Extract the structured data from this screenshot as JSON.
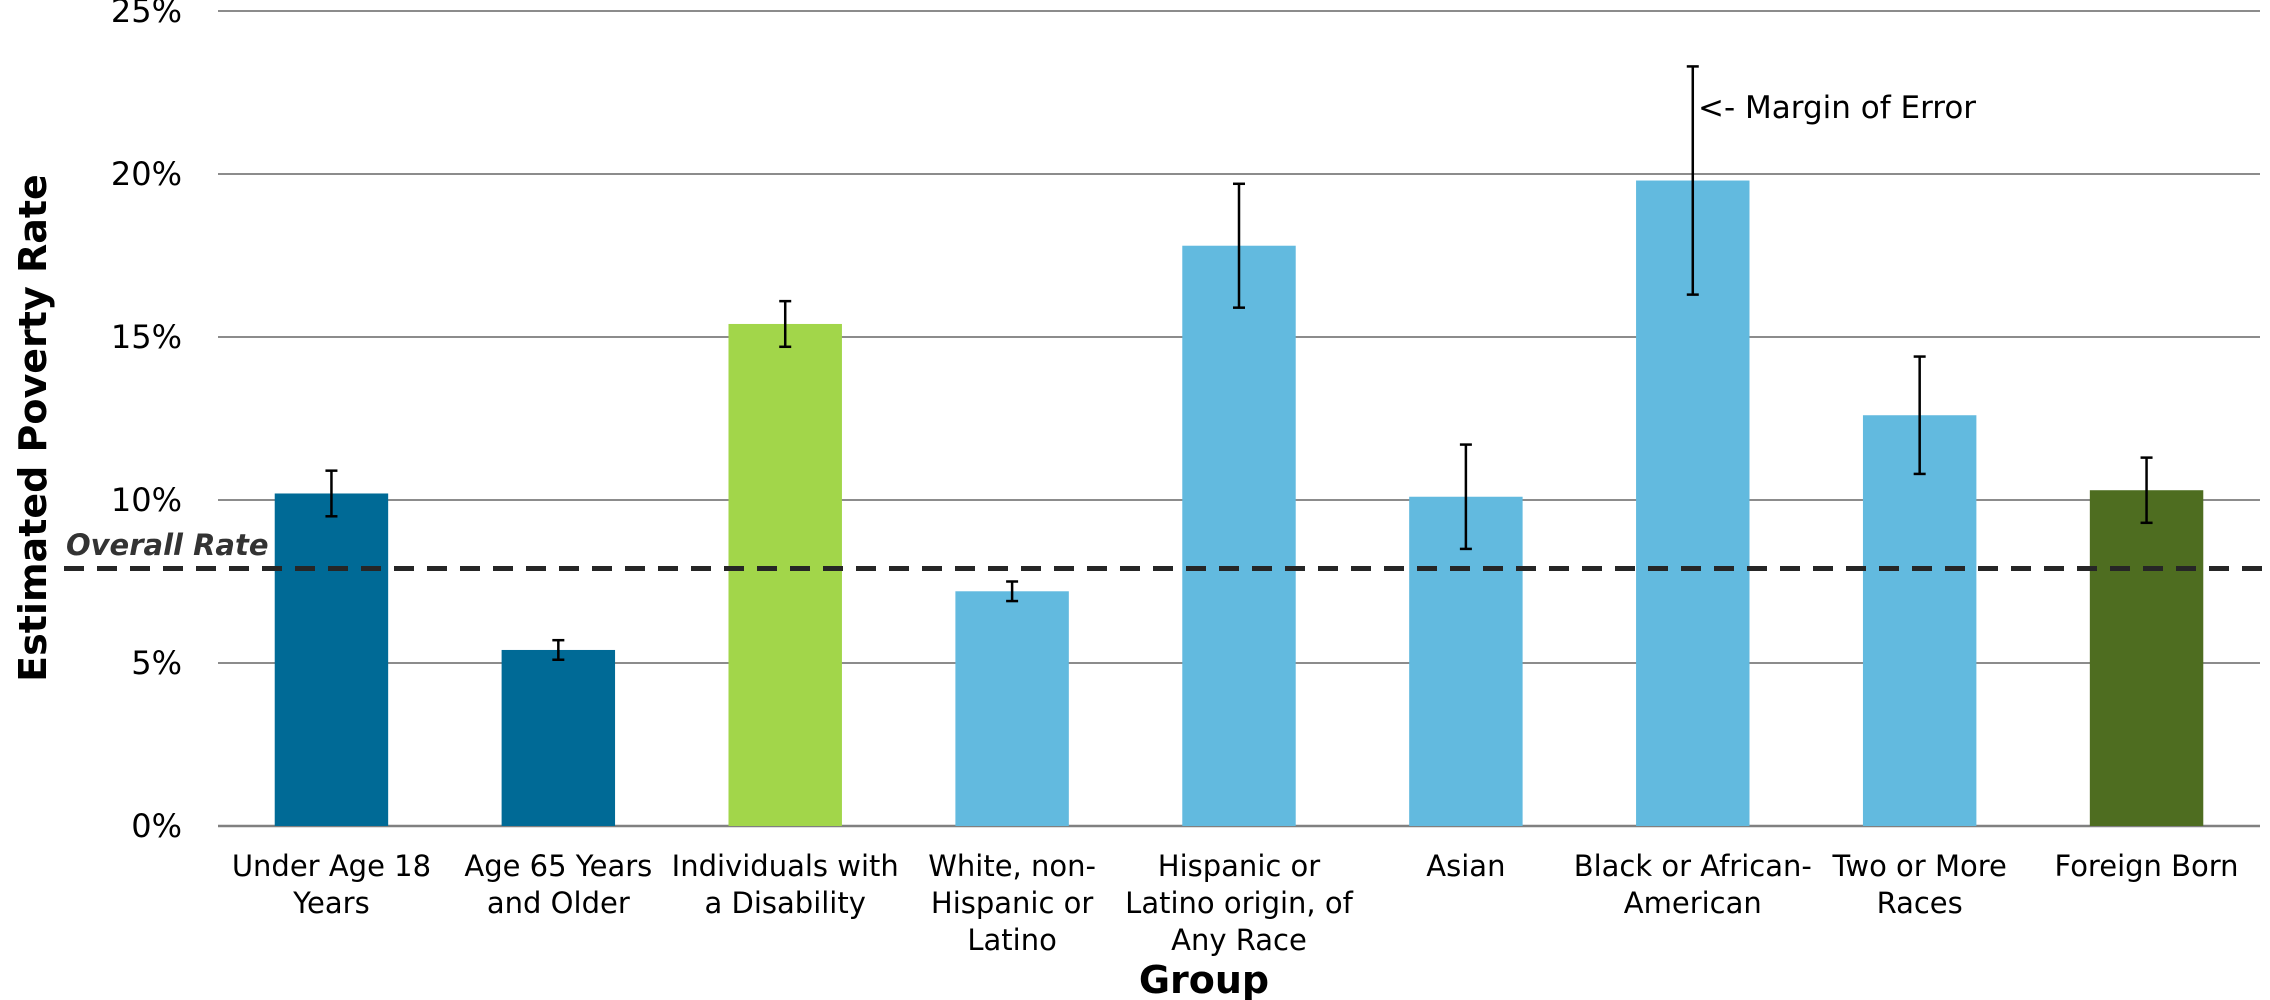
{
  "chart_data": {
    "type": "bar",
    "title": "",
    "xlabel": "Group",
    "ylabel": "Estimated Poverty Rate",
    "ylim": [
      0,
      25
    ],
    "yticks": [
      "0%",
      "5%",
      "10%",
      "15%",
      "20%",
      "25%"
    ],
    "grid": true,
    "categories": [
      [
        "Under Age 18",
        "Years"
      ],
      [
        "Age 65 Years",
        "and Older"
      ],
      [
        "Individuals with",
        "a Disability"
      ],
      [
        "White, non-",
        "Hispanic or",
        "Latino"
      ],
      [
        "Hispanic or",
        "Latino origin, of",
        "Any Race"
      ],
      [
        "Asian"
      ],
      [
        "Black or African-",
        "American"
      ],
      [
        "Two or More",
        "Races"
      ],
      [
        "Foreign Born"
      ]
    ],
    "values": [
      10.2,
      5.4,
      15.4,
      7.2,
      17.8,
      10.1,
      19.8,
      12.6,
      10.3
    ],
    "error_low": [
      9.5,
      5.1,
      14.7,
      6.9,
      15.9,
      8.5,
      16.3,
      10.8,
      9.3
    ],
    "error_high": [
      10.9,
      5.7,
      16.1,
      7.5,
      19.7,
      11.7,
      23.3,
      14.4,
      11.3
    ],
    "bar_colors": [
      "#006A96",
      "#006A96",
      "#A2D64A",
      "#62BADF",
      "#62BADF",
      "#62BADF",
      "#62BADF",
      "#62BADF",
      "#4E6D20"
    ],
    "reference_line": {
      "label": "Overall Rate",
      "value": 7.9,
      "style": "dashed",
      "color": "#262626"
    },
    "annotation": {
      "text": "<- Margin of Error"
    }
  }
}
